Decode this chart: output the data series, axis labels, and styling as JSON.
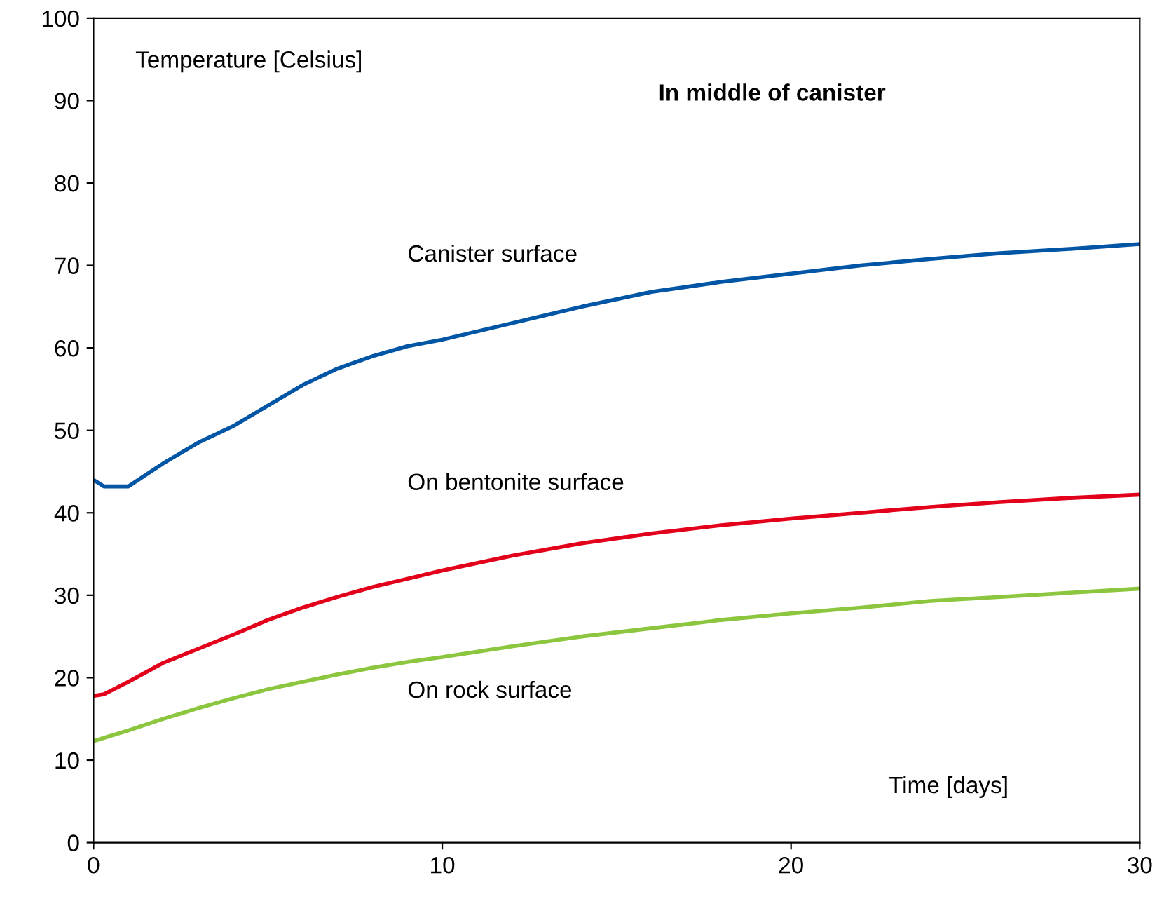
{
  "chart_data": {
    "type": "line",
    "title": "In middle of canister",
    "ylabel": "Temperature [Celsius]",
    "xlabel": "Time [days]",
    "x": [
      0,
      0.3,
      1,
      2,
      3,
      4,
      5,
      6,
      7,
      8,
      9,
      10,
      12,
      14,
      16,
      18,
      20,
      22,
      24,
      26,
      28,
      30
    ],
    "series": [
      {
        "name": "Canister surface",
        "color": "#0055a5",
        "values": [
          44,
          43.2,
          43.2,
          46,
          48.5,
          50.5,
          53,
          55.5,
          57.5,
          59,
          60.2,
          61,
          63,
          65,
          66.8,
          68,
          69,
          70,
          70.8,
          71.5,
          72,
          72.6
        ]
      },
      {
        "name": "On bentonite surface",
        "color": "#e3001b",
        "values": [
          17.8,
          18,
          19.5,
          21.8,
          23.5,
          25.2,
          27,
          28.5,
          29.8,
          31,
          32,
          33,
          34.8,
          36.3,
          37.5,
          38.5,
          39.3,
          40,
          40.7,
          41.3,
          41.8,
          42.2
        ]
      },
      {
        "name": "On rock surface",
        "color": "#8cc63f",
        "values": [
          12.3,
          12.7,
          13.6,
          15,
          16.3,
          17.5,
          18.6,
          19.5,
          20.4,
          21.2,
          21.9,
          22.5,
          23.8,
          25,
          26,
          27,
          27.8,
          28.5,
          29.3,
          29.8,
          30.3,
          30.8
        ]
      }
    ],
    "xlim": [
      0,
      30
    ],
    "xticks": [
      0,
      10,
      20,
      30
    ],
    "ylim": [
      0,
      100
    ],
    "yticks": [
      0,
      10,
      20,
      30,
      40,
      50,
      60,
      70,
      80,
      90,
      100
    ],
    "grid": false,
    "legend": false,
    "marker": "none",
    "line_style": "solid"
  }
}
